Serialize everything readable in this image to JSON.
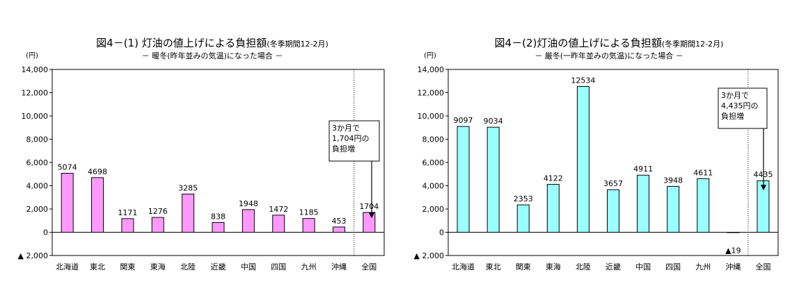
{
  "chart_data": [
    {
      "type": "bar",
      "title": "図4－(1) 灯油の値上げによる負担額",
      "title_note": "(冬季期間12-2月)",
      "subtitle": "－ 暖冬(昨年並みの気温)になった場合 －",
      "ylabel": "(円)",
      "ylim": [
        -2000,
        14000
      ],
      "yticks": [
        14000,
        12000,
        10000,
        8000,
        6000,
        4000,
        2000,
        0,
        -2000
      ],
      "ytick_labels": [
        "14,000",
        "12,000",
        "10,000",
        "8,000",
        "6,000",
        "4,000",
        "2,000",
        "0",
        "▲ 2,000"
      ],
      "categories": [
        "北海道",
        "東北",
        "関東",
        "東海",
        "北陸",
        "近畿",
        "中国",
        "四国",
        "九州",
        "沖縄",
        "全国"
      ],
      "values": [
        5074,
        4698,
        1171,
        1276,
        3285,
        838,
        1948,
        1472,
        1185,
        453,
        1704
      ],
      "data_labels": [
        "5074",
        "4698",
        "1171",
        "1276",
        "3285",
        "838",
        "1948",
        "1472",
        "1185",
        "453",
        "1704"
      ],
      "bar_color": "#ff99ff",
      "grid": false,
      "annotation": [
        "3か月で",
        "1,704円の",
        "負担増"
      ]
    },
    {
      "type": "bar",
      "title": "図4－(2)灯油の値上げによる負担額",
      "title_note": "(冬季期間12-2月)",
      "subtitle": "－ 厳冬(一昨年並みの気温)になった場合 －",
      "ylabel": "(円)",
      "ylim": [
        -2000,
        14000
      ],
      "yticks": [
        14000,
        12000,
        10000,
        8000,
        6000,
        4000,
        2000,
        0,
        -2000
      ],
      "ytick_labels": [
        "14,000",
        "12,000",
        "10,000",
        "8,000",
        "6,000",
        "4,000",
        "2,000",
        "0",
        "▲ 2,000"
      ],
      "categories": [
        "北海道",
        "東北",
        "関東",
        "東海",
        "北陸",
        "近畿",
        "中国",
        "四国",
        "九州",
        "沖縄",
        "全国"
      ],
      "values": [
        9097,
        9034,
        2353,
        4122,
        12534,
        3657,
        4911,
        3948,
        4611,
        -19,
        4435
      ],
      "data_labels": [
        "9097",
        "9034",
        "2353",
        "4122",
        "12534",
        "3657",
        "4911",
        "3948",
        "4611",
        "▲19",
        "4435"
      ],
      "bar_color": "#99ffff",
      "grid": false,
      "annotation": [
        "3か月で",
        "4,435円の",
        "負担増"
      ]
    }
  ]
}
